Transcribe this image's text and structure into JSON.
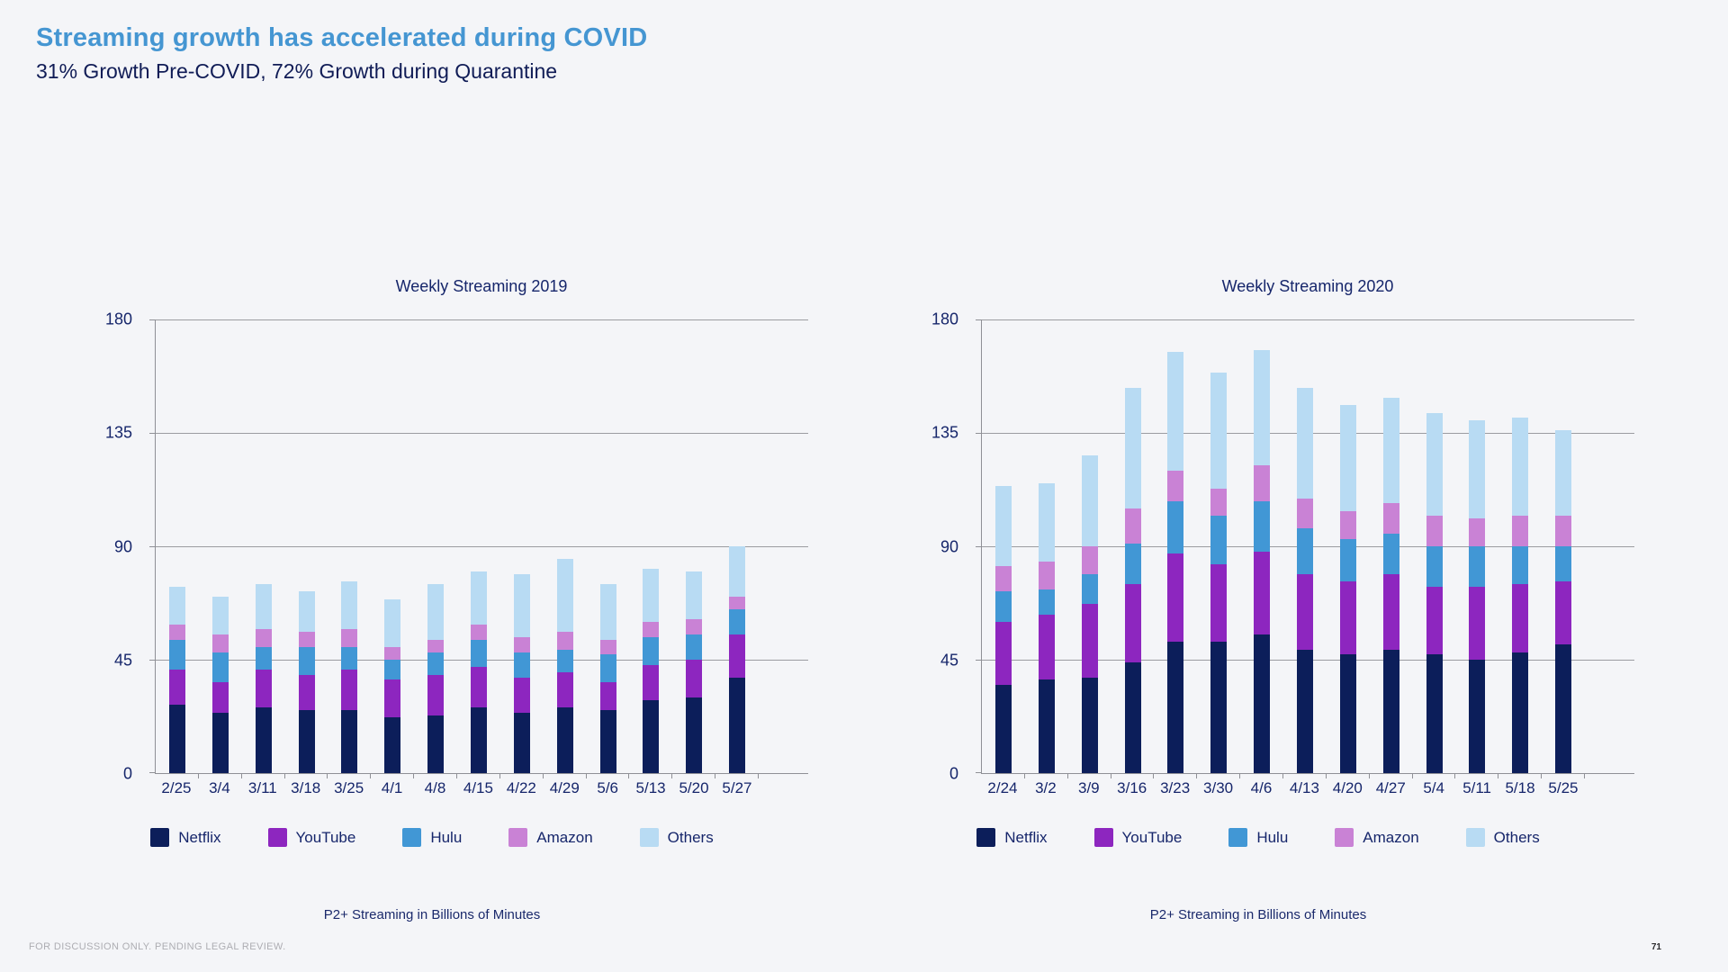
{
  "page": {
    "title": "Streaming growth has accelerated during COVID",
    "subtitle": "31% Growth Pre-COVID, 72% Growth during Quarantine"
  },
  "footer": {
    "disclaimer": "FOR DISCUSSION ONLY. PENDING LEGAL REVIEW.",
    "page_number": "71"
  },
  "colors": {
    "background": "#f4f5f8",
    "title_accent": "#4596d2",
    "dark_navy_text": "#101c56",
    "gridline": "#9b9ca1",
    "netflix": "#0c1e5a",
    "youtube": "#8d26bf",
    "hulu": "#4197d5",
    "amazon": "#c982d5",
    "others": "#b8dbf3"
  },
  "chart_data": [
    {
      "type": "bar",
      "stacked": true,
      "title": "Weekly Streaming 2019",
      "caption": "P2+ Streaming in Billions of Minutes",
      "ylabel": "",
      "xlabel": "",
      "ylim": [
        0,
        180
      ],
      "yticks": [
        0,
        45,
        90,
        135,
        180
      ],
      "grid": true,
      "legend_position": "bottom",
      "categories": [
        "2/25",
        "3/4",
        "3/11",
        "3/18",
        "3/25",
        "4/1",
        "4/8",
        "4/15",
        "4/22",
        "4/29",
        "5/6",
        "5/13",
        "5/20",
        "5/27"
      ],
      "series": [
        {
          "name": "Netflix",
          "color": "#0c1e5a",
          "values": [
            27,
            24,
            26,
            25,
            25,
            22,
            23,
            26,
            24,
            26,
            25,
            29,
            30,
            38
          ]
        },
        {
          "name": "YouTube",
          "color": "#8d26bf",
          "values": [
            14,
            12,
            15,
            14,
            16,
            15,
            16,
            16,
            14,
            14,
            11,
            14,
            15,
            17
          ]
        },
        {
          "name": "Hulu",
          "color": "#4197d5",
          "values": [
            12,
            12,
            9,
            11,
            9,
            8,
            9,
            11,
            10,
            9,
            11,
            11,
            10,
            10
          ]
        },
        {
          "name": "Amazon",
          "color": "#c982d5",
          "values": [
            6,
            7,
            7,
            6,
            7,
            5,
            5,
            6,
            6,
            7,
            6,
            6,
            6,
            5
          ]
        },
        {
          "name": "Others",
          "color": "#b8dbf3",
          "values": [
            15,
            15,
            18,
            16,
            19,
            19,
            22,
            21,
            25,
            29,
            22,
            21,
            19,
            20
          ]
        }
      ]
    },
    {
      "type": "bar",
      "stacked": true,
      "title": "Weekly Streaming 2020",
      "caption": "P2+ Streaming in Billions of Minutes",
      "ylabel": "",
      "xlabel": "",
      "ylim": [
        0,
        180
      ],
      "yticks": [
        0,
        45,
        90,
        135,
        180
      ],
      "grid": true,
      "legend_position": "bottom",
      "categories": [
        "2/24",
        "3/2",
        "3/9",
        "3/16",
        "3/23",
        "3/30",
        "4/6",
        "4/13",
        "4/20",
        "4/27",
        "5/4",
        "5/11",
        "5/18",
        "5/25"
      ],
      "series": [
        {
          "name": "Netflix",
          "color": "#0c1e5a",
          "values": [
            35,
            37,
            38,
            44,
            52,
            52,
            55,
            49,
            47,
            49,
            47,
            45,
            48,
            51
          ]
        },
        {
          "name": "YouTube",
          "color": "#8d26bf",
          "values": [
            25,
            26,
            29,
            31,
            35,
            31,
            33,
            30,
            29,
            30,
            27,
            29,
            27,
            25
          ]
        },
        {
          "name": "Hulu",
          "color": "#4197d5",
          "values": [
            12,
            10,
            12,
            16,
            21,
            19,
            20,
            18,
            17,
            16,
            16,
            16,
            15,
            14
          ]
        },
        {
          "name": "Amazon",
          "color": "#c982d5",
          "values": [
            10,
            11,
            11,
            14,
            12,
            11,
            14,
            12,
            11,
            12,
            12,
            11,
            12,
            12
          ]
        },
        {
          "name": "Others",
          "color": "#b8dbf3",
          "values": [
            32,
            31,
            36,
            48,
            47,
            46,
            46,
            44,
            42,
            42,
            41,
            39,
            39,
            34
          ]
        }
      ]
    }
  ]
}
